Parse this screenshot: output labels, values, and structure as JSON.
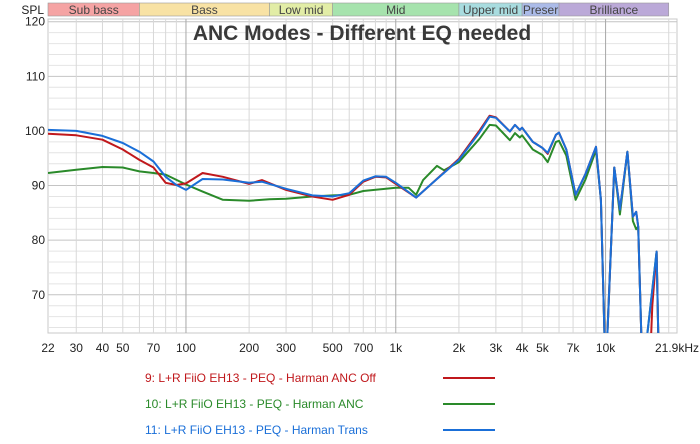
{
  "chart_data": {
    "type": "line",
    "title": "ANC Modes - Different EQ needed",
    "ylabel": "SPL",
    "xscale": "log",
    "xlim": [
      22,
      21900
    ],
    "ylim": [
      63,
      120.5
    ],
    "grid": true,
    "legend_placement": "bottom",
    "x_tick_labels": [
      {
        "f": 22,
        "label": "22"
      },
      {
        "f": 30,
        "label": "30"
      },
      {
        "f": 40,
        "label": "40"
      },
      {
        "f": 50,
        "label": "50"
      },
      {
        "f": 70,
        "label": "70"
      },
      {
        "f": 100,
        "label": "100"
      },
      {
        "f": 200,
        "label": "200"
      },
      {
        "f": 300,
        "label": "300"
      },
      {
        "f": 500,
        "label": "500"
      },
      {
        "f": 700,
        "label": "700"
      },
      {
        "f": 1000,
        "label": "1k"
      },
      {
        "f": 2000,
        "label": "2k"
      },
      {
        "f": 3000,
        "label": "3k"
      },
      {
        "f": 4000,
        "label": "4k"
      },
      {
        "f": 5000,
        "label": "5k"
      },
      {
        "f": 7000,
        "label": "7k"
      },
      {
        "f": 10000,
        "label": "10k"
      },
      {
        "f": 21900,
        "label": "21.9kHz"
      }
    ],
    "y_tick_labels": [
      {
        "v": 120,
        "label": "120"
      },
      {
        "v": 110,
        "label": "110"
      },
      {
        "v": 100,
        "label": "100"
      },
      {
        "v": 90,
        "label": "90"
      },
      {
        "v": 80,
        "label": "80"
      },
      {
        "v": 70,
        "label": "70"
      }
    ],
    "bands": [
      {
        "label": "Sub bass",
        "from": 20,
        "to": 60,
        "color": "#f5a3a3"
      },
      {
        "label": "Bass",
        "from": 60,
        "to": 250,
        "color": "#f8e2a4"
      },
      {
        "label": "Low mid",
        "from": 250,
        "to": 500,
        "color": "#e2eda6"
      },
      {
        "label": "Mid",
        "from": 500,
        "to": 2000,
        "color": "#a6e3ad"
      },
      {
        "label": "Upper mid",
        "from": 2000,
        "to": 4000,
        "color": "#a8dcdf"
      },
      {
        "label": "Presence",
        "display": "Preser",
        "from": 4000,
        "to": 6000,
        "color": "#abbbe8"
      },
      {
        "label": "Brilliance",
        "from": 6000,
        "to": 20000,
        "color": "#bba9d8"
      }
    ],
    "series": [
      {
        "name": "9: L+R FiiO EH13 - PEQ - Harman ANC Off",
        "color": "#c0181c",
        "points": [
          [
            22,
            99.5
          ],
          [
            30,
            99.2
          ],
          [
            40,
            98.4
          ],
          [
            50,
            96.6
          ],
          [
            60,
            94.7
          ],
          [
            70,
            93.3
          ],
          [
            80,
            90.5
          ],
          [
            90,
            90.1
          ],
          [
            100,
            90.4
          ],
          [
            120,
            92.3
          ],
          [
            150,
            91.6
          ],
          [
            200,
            90.3
          ],
          [
            230,
            91
          ],
          [
            300,
            89.2
          ],
          [
            400,
            88
          ],
          [
            500,
            87.4
          ],
          [
            600,
            88.3
          ],
          [
            700,
            90.7
          ],
          [
            800,
            91.6
          ],
          [
            900,
            91.5
          ],
          [
            1000,
            90.3
          ],
          [
            1250,
            87.8
          ],
          [
            1500,
            90.5
          ],
          [
            2000,
            94.9
          ],
          [
            2500,
            100
          ],
          [
            2800,
            102.8
          ],
          [
            3000,
            102.5
          ],
          [
            3500,
            99.9
          ],
          [
            3700,
            101.1
          ],
          [
            3900,
            100.2
          ],
          [
            4000,
            100.6
          ],
          [
            4500,
            98
          ],
          [
            5000,
            96.9
          ],
          [
            5300,
            95.8
          ],
          [
            5800,
            99.3
          ],
          [
            6000,
            99.7
          ],
          [
            6500,
            96.6
          ],
          [
            7200,
            88.3
          ],
          [
            8000,
            92
          ],
          [
            9000,
            97.1
          ],
          [
            9500,
            87.4
          ],
          [
            10000,
            55
          ],
          [
            11000,
            93.3
          ],
          [
            11700,
            85.6
          ],
          [
            12700,
            96.2
          ],
          [
            13500,
            84.3
          ],
          [
            14000,
            85.2
          ],
          [
            14300,
            82.5
          ],
          [
            15000,
            55
          ],
          [
            16200,
            55
          ],
          [
            16700,
            68
          ],
          [
            17500,
            77.9
          ],
          [
            18000,
            55
          ]
        ]
      },
      {
        "name": "10: L+R FiiO EH13 - PEQ - Harman ANC",
        "color": "#2a8a2a",
        "points": [
          [
            22,
            92.3
          ],
          [
            30,
            92.9
          ],
          [
            40,
            93.4
          ],
          [
            50,
            93.3
          ],
          [
            60,
            92.6
          ],
          [
            70,
            92.3
          ],
          [
            80,
            92
          ],
          [
            100,
            90.2
          ],
          [
            120,
            88.9
          ],
          [
            150,
            87.4
          ],
          [
            200,
            87.2
          ],
          [
            250,
            87.5
          ],
          [
            300,
            87.6
          ],
          [
            400,
            88
          ],
          [
            500,
            88.2
          ],
          [
            600,
            88.3
          ],
          [
            700,
            89
          ],
          [
            1000,
            89.6
          ],
          [
            1150,
            89.6
          ],
          [
            1250,
            88.3
          ],
          [
            1350,
            91
          ],
          [
            1570,
            93.6
          ],
          [
            1700,
            92.8
          ],
          [
            2000,
            94.3
          ],
          [
            2500,
            98.5
          ],
          [
            2800,
            101.1
          ],
          [
            3000,
            101
          ],
          [
            3500,
            98.3
          ],
          [
            3700,
            99.6
          ],
          [
            3900,
            98.8
          ],
          [
            4000,
            99.2
          ],
          [
            4500,
            96.6
          ],
          [
            5000,
            95.6
          ],
          [
            5300,
            94.3
          ],
          [
            5800,
            98
          ],
          [
            6000,
            98.2
          ],
          [
            6500,
            95.5
          ],
          [
            7200,
            87.4
          ],
          [
            8000,
            91
          ],
          [
            9000,
            96.5
          ],
          [
            9500,
            87.4
          ],
          [
            10000,
            55
          ],
          [
            11000,
            93.3
          ],
          [
            11700,
            84.7
          ],
          [
            12700,
            96.2
          ],
          [
            13500,
            83.5
          ],
          [
            14000,
            82
          ],
          [
            14300,
            82.5
          ],
          [
            15000,
            55
          ],
          [
            17500,
            77.9
          ],
          [
            18000,
            55
          ]
        ]
      },
      {
        "name": "11: L+R FiiO EH13 - PEQ - Harman Trans",
        "color": "#1a6fd8",
        "points": [
          [
            22,
            100.2
          ],
          [
            30,
            100
          ],
          [
            40,
            99.1
          ],
          [
            50,
            97.8
          ],
          [
            60,
            96.2
          ],
          [
            70,
            94.4
          ],
          [
            80,
            91.6
          ],
          [
            90,
            90.1
          ],
          [
            100,
            89.2
          ],
          [
            120,
            91.2
          ],
          [
            150,
            91.1
          ],
          [
            200,
            90.5
          ],
          [
            230,
            90.7
          ],
          [
            300,
            89.4
          ],
          [
            400,
            88.2
          ],
          [
            500,
            88
          ],
          [
            600,
            88.6
          ],
          [
            700,
            90.9
          ],
          [
            800,
            91.7
          ],
          [
            900,
            91.6
          ],
          [
            1000,
            90.5
          ],
          [
            1250,
            87.8
          ],
          [
            1500,
            90.5
          ],
          [
            2000,
            94.7
          ],
          [
            2500,
            99.7
          ],
          [
            2800,
            102.6
          ],
          [
            3000,
            102.4
          ],
          [
            3500,
            99.9
          ],
          [
            3700,
            101.1
          ],
          [
            3900,
            100.2
          ],
          [
            4000,
            100.6
          ],
          [
            4500,
            98
          ],
          [
            5000,
            96.9
          ],
          [
            5300,
            96
          ],
          [
            5800,
            99.3
          ],
          [
            6000,
            99.7
          ],
          [
            6500,
            96.6
          ],
          [
            7200,
            88.3
          ],
          [
            8000,
            92
          ],
          [
            9000,
            97.1
          ],
          [
            9500,
            87.4
          ],
          [
            10000,
            55
          ],
          [
            11000,
            93.3
          ],
          [
            11700,
            85.6
          ],
          [
            12700,
            96.2
          ],
          [
            13500,
            84.3
          ],
          [
            14000,
            85.2
          ],
          [
            14300,
            82.5
          ],
          [
            15000,
            55
          ],
          [
            17500,
            77.9
          ],
          [
            18000,
            55
          ]
        ]
      }
    ]
  }
}
